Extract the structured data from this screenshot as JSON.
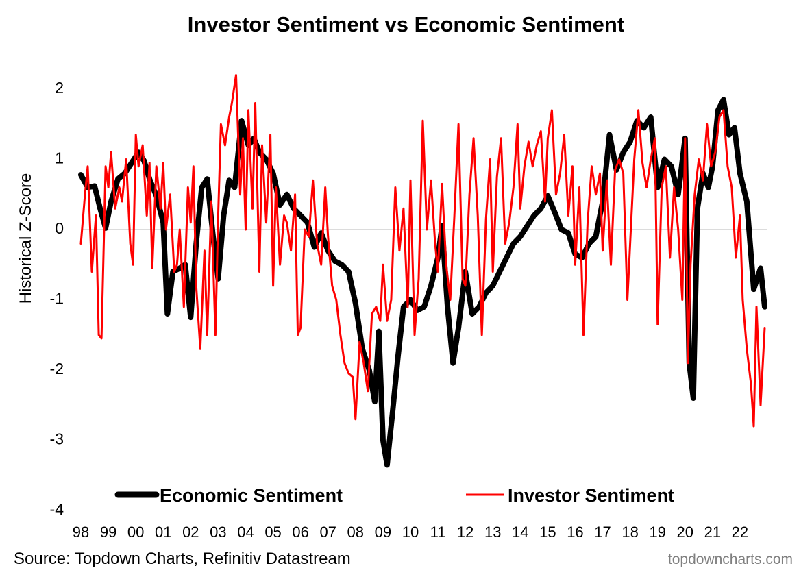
{
  "chart_data": {
    "type": "line",
    "title": "Investor Sentiment vs Economic Sentiment",
    "ylabel": "Historical Z-Score",
    "xlabel": "",
    "ylim": [
      -4,
      2.4
    ],
    "xlim": [
      1998.0,
      2023.0
    ],
    "yticks": [
      2,
      1,
      0,
      -1,
      -2,
      -3,
      -4
    ],
    "xtick_labels": [
      "98",
      "99",
      "00",
      "01",
      "02",
      "03",
      "04",
      "05",
      "06",
      "07",
      "08",
      "09",
      "10",
      "11",
      "12",
      "13",
      "14",
      "15",
      "16",
      "17",
      "18",
      "19",
      "20",
      "21",
      "22"
    ],
    "legend_position": "bottom",
    "grid": false,
    "zero_line": true,
    "series": [
      {
        "name": "Economic Sentiment",
        "color": "#000000",
        "x": [
          1998.0,
          1998.25,
          1998.5,
          1998.7,
          1998.9,
          1999.1,
          1999.35,
          1999.6,
          1999.85,
          2000.1,
          2000.3,
          2000.5,
          2000.75,
          2001.0,
          2001.15,
          2001.35,
          2001.6,
          2001.8,
          2002.0,
          2002.2,
          2002.4,
          2002.6,
          2002.8,
          2003.0,
          2003.2,
          2003.4,
          2003.6,
          2003.85,
          2004.1,
          2004.3,
          2004.5,
          2004.75,
          2005.0,
          2005.25,
          2005.5,
          2005.75,
          2006.0,
          2006.25,
          2006.5,
          2006.75,
          2007.0,
          2007.25,
          2007.5,
          2007.75,
          2008.0,
          2008.25,
          2008.5,
          2008.7,
          2008.85,
          2009.0,
          2009.15,
          2009.35,
          2009.55,
          2009.75,
          2010.0,
          2010.25,
          2010.5,
          2010.75,
          2011.0,
          2011.15,
          2011.35,
          2011.55,
          2011.75,
          2012.0,
          2012.25,
          2012.5,
          2012.75,
          2013.0,
          2013.25,
          2013.5,
          2013.75,
          2014.0,
          2014.25,
          2014.5,
          2014.75,
          2015.0,
          2015.25,
          2015.5,
          2015.75,
          2016.0,
          2016.25,
          2016.5,
          2016.75,
          2017.0,
          2017.25,
          2017.5,
          2017.75,
          2018.0,
          2018.25,
          2018.5,
          2018.75,
          2019.0,
          2019.25,
          2019.5,
          2019.75,
          2020.0,
          2020.15,
          2020.3,
          2020.45,
          2020.65,
          2020.85,
          2021.0,
          2021.2,
          2021.4,
          2021.6,
          2021.8,
          2022.0,
          2022.25,
          2022.5,
          2022.75,
          2022.9
        ],
        "y": [
          0.78,
          0.6,
          0.62,
          0.3,
          0.02,
          0.4,
          0.72,
          0.8,
          0.95,
          1.1,
          0.98,
          0.72,
          0.48,
          0.1,
          -1.2,
          -0.6,
          -0.55,
          -0.5,
          -1.25,
          -0.2,
          0.6,
          0.72,
          -0.05,
          -0.7,
          0.2,
          0.7,
          0.6,
          1.55,
          1.2,
          1.3,
          1.1,
          1.0,
          0.8,
          0.35,
          0.5,
          0.3,
          0.2,
          0.1,
          -0.25,
          -0.05,
          -0.3,
          -0.45,
          -0.5,
          -0.6,
          -1.05,
          -1.7,
          -2.0,
          -2.45,
          -1.45,
          -3.0,
          -3.35,
          -2.6,
          -1.8,
          -1.1,
          -1.0,
          -1.15,
          -1.1,
          -0.8,
          -0.4,
          0.05,
          -1.1,
          -1.9,
          -1.4,
          -0.6,
          -1.2,
          -1.1,
          -0.9,
          -0.8,
          -0.6,
          -0.4,
          -0.2,
          -0.1,
          0.05,
          0.2,
          0.3,
          0.48,
          0.25,
          0.0,
          -0.05,
          -0.35,
          -0.4,
          -0.2,
          -0.1,
          0.4,
          1.35,
          0.85,
          1.1,
          1.25,
          1.55,
          1.45,
          1.6,
          0.6,
          1.0,
          0.9,
          0.5,
          1.3,
          -1.9,
          -2.4,
          0.3,
          0.8,
          0.6,
          0.9,
          1.7,
          1.85,
          1.35,
          1.45,
          0.8,
          0.4,
          -0.85,
          -0.55,
          -1.1
        ]
      },
      {
        "name": "Investor Sentiment",
        "color": "#ff0000",
        "x": [
          1998.0,
          1998.15,
          1998.25,
          1998.4,
          1998.55,
          1998.65,
          1998.75,
          1998.9,
          1999.0,
          1999.1,
          1999.25,
          1999.4,
          1999.5,
          1999.65,
          1999.8,
          1999.9,
          2000.0,
          2000.1,
          2000.25,
          2000.4,
          2000.5,
          2000.6,
          2000.75,
          2000.9,
          2001.0,
          2001.1,
          2001.25,
          2001.4,
          2001.5,
          2001.6,
          2001.75,
          2001.9,
          2002.0,
          2002.1,
          2002.2,
          2002.35,
          2002.5,
          2002.6,
          2002.75,
          2002.9,
          2003.0,
          2003.1,
          2003.25,
          2003.4,
          2003.5,
          2003.65,
          2003.8,
          2003.9,
          2004.0,
          2004.1,
          2004.25,
          2004.35,
          2004.5,
          2004.6,
          2004.75,
          2004.9,
          2005.0,
          2005.1,
          2005.25,
          2005.4,
          2005.5,
          2005.65,
          2005.8,
          2005.9,
          2006.0,
          2006.15,
          2006.3,
          2006.45,
          2006.6,
          2006.75,
          2006.9,
          2007.0,
          2007.15,
          2007.3,
          2007.45,
          2007.6,
          2007.75,
          2007.9,
          2008.0,
          2008.15,
          2008.3,
          2008.45,
          2008.6,
          2008.75,
          2008.9,
          2009.0,
          2009.15,
          2009.3,
          2009.45,
          2009.6,
          2009.75,
          2009.9,
          2010.0,
          2010.15,
          2010.3,
          2010.45,
          2010.6,
          2010.75,
          2010.9,
          2011.0,
          2011.15,
          2011.3,
          2011.45,
          2011.6,
          2011.75,
          2011.9,
          2012.0,
          2012.15,
          2012.3,
          2012.45,
          2012.6,
          2012.75,
          2012.9,
          2013.0,
          2013.15,
          2013.3,
          2013.45,
          2013.6,
          2013.75,
          2013.9,
          2014.0,
          2014.15,
          2014.3,
          2014.45,
          2014.6,
          2014.75,
          2014.9,
          2015.0,
          2015.15,
          2015.3,
          2015.45,
          2015.6,
          2015.75,
          2015.9,
          2016.0,
          2016.15,
          2016.3,
          2016.45,
          2016.6,
          2016.75,
          2016.9,
          2017.0,
          2017.15,
          2017.3,
          2017.45,
          2017.6,
          2017.75,
          2017.9,
          2018.0,
          2018.15,
          2018.3,
          2018.45,
          2018.6,
          2018.75,
          2018.9,
          2019.0,
          2019.15,
          2019.3,
          2019.45,
          2019.6,
          2019.75,
          2019.9,
          2020.0,
          2020.1,
          2020.2,
          2020.35,
          2020.5,
          2020.65,
          2020.8,
          2020.95,
          2021.1,
          2021.25,
          2021.4,
          2021.55,
          2021.7,
          2021.85,
          2022.0,
          2022.1,
          2022.25,
          2022.4,
          2022.5,
          2022.6,
          2022.75,
          2022.9
        ],
        "y": [
          -0.2,
          0.5,
          0.9,
          -0.6,
          0.2,
          -1.5,
          -1.55,
          0.9,
          0.6,
          1.1,
          0.3,
          0.6,
          0.4,
          1.0,
          -0.2,
          -0.5,
          1.35,
          0.9,
          1.2,
          0.2,
          0.95,
          -0.55,
          0.9,
          0.3,
          0.95,
          0.0,
          0.5,
          -0.6,
          -0.5,
          0.0,
          -1.1,
          0.6,
          0.1,
          0.9,
          -0.8,
          -1.7,
          -0.3,
          -1.5,
          0.4,
          -1.5,
          0.2,
          1.5,
          1.2,
          1.6,
          1.8,
          2.2,
          0.5,
          1.3,
          0.0,
          1.7,
          0.3,
          1.8,
          -0.6,
          1.2,
          0.1,
          1.35,
          -0.8,
          0.6,
          -0.5,
          0.2,
          0.1,
          -0.3,
          0.5,
          -1.5,
          -1.4,
          0.0,
          -0.1,
          0.7,
          -0.2,
          -0.5,
          0.6,
          -0.1,
          -0.8,
          -1.0,
          -1.5,
          -1.9,
          -2.05,
          -2.1,
          -2.7,
          -1.6,
          -1.9,
          -2.3,
          -1.2,
          -1.1,
          -1.3,
          -0.5,
          -1.3,
          -1.0,
          0.6,
          -0.3,
          0.3,
          -1.1,
          0.7,
          -1.5,
          -0.7,
          1.55,
          0.0,
          0.7,
          -0.2,
          -0.6,
          0.65,
          -0.5,
          -1.0,
          0.2,
          1.5,
          -0.7,
          -0.8,
          0.5,
          1.3,
          0.2,
          -1.5,
          0.15,
          1.0,
          -0.6,
          0.75,
          1.3,
          -0.2,
          0.1,
          0.6,
          1.5,
          0.3,
          0.9,
          1.25,
          0.9,
          1.2,
          1.4,
          0.4,
          1.3,
          1.7,
          0.5,
          0.8,
          1.35,
          0.2,
          0.9,
          -0.5,
          0.6,
          -1.5,
          0.1,
          0.9,
          0.5,
          0.8,
          -0.3,
          0.7,
          -0.5,
          0.85,
          1.0,
          0.8,
          -1.0,
          -0.2,
          1.0,
          1.7,
          0.95,
          0.6,
          1.0,
          1.3,
          -1.35,
          0.6,
          0.9,
          -0.4,
          0.6,
          0.0,
          -1.0,
          1.3,
          -1.9,
          -0.5,
          0.5,
          1.0,
          0.7,
          1.5,
          0.9,
          1.1,
          1.6,
          1.7,
          0.9,
          0.6,
          -0.4,
          0.2,
          -1.0,
          -1.7,
          -2.2,
          -2.8,
          -1.1,
          -2.5,
          -1.4
        ]
      }
    ]
  },
  "source": "Source: Topdown Charts, Refinitiv Datastream",
  "brand": "topdowncharts.com"
}
